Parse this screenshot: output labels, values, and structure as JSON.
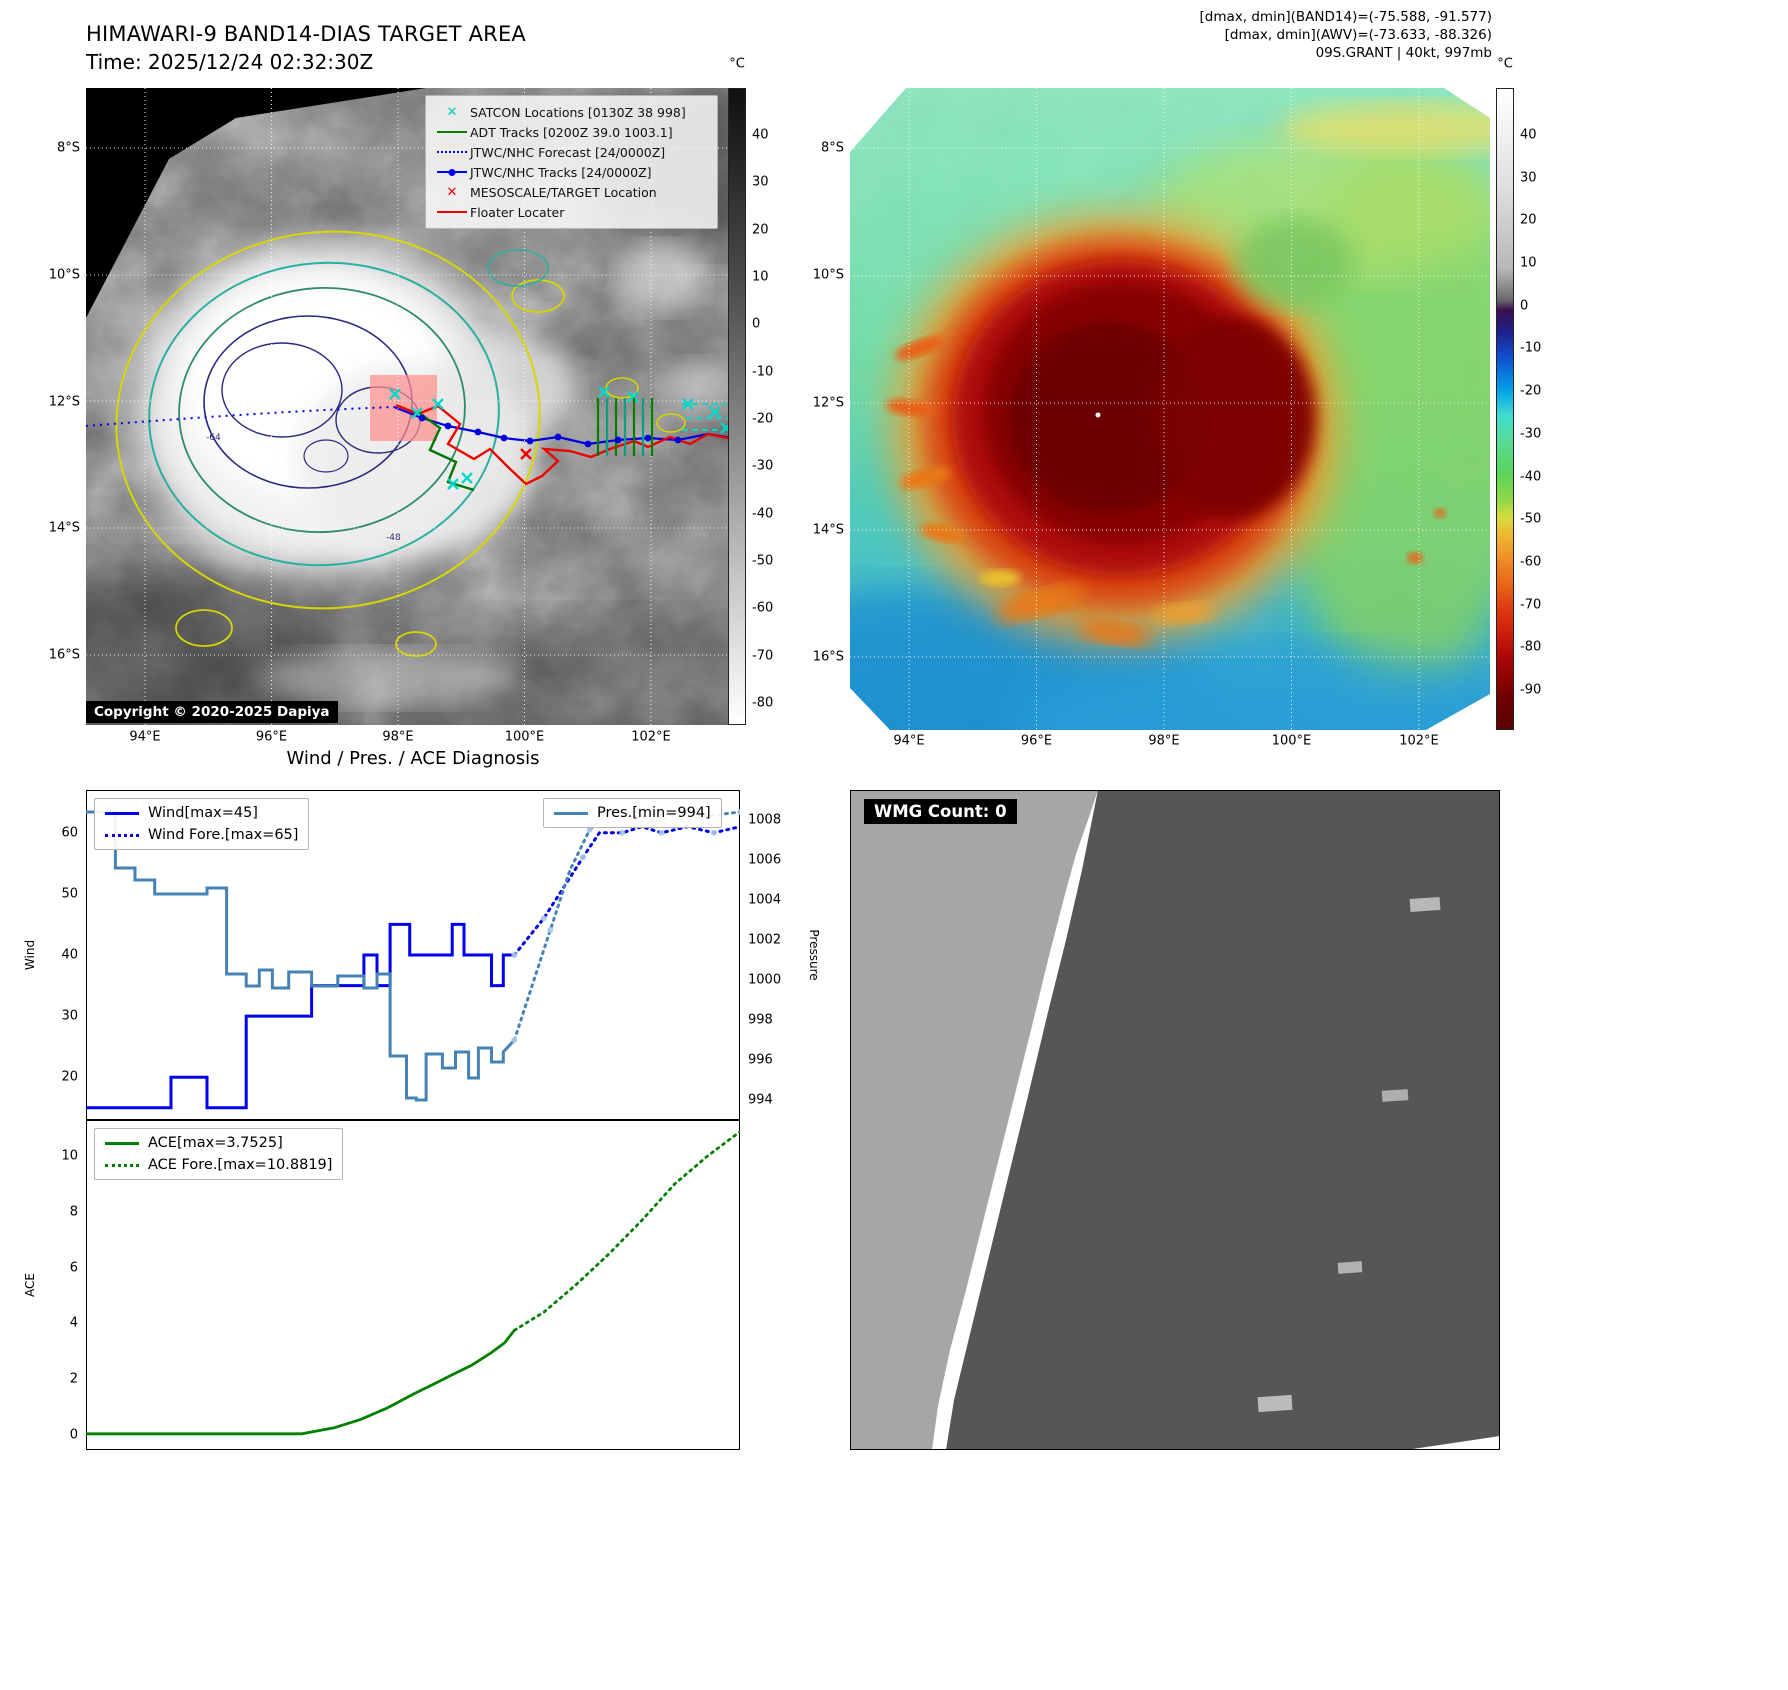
{
  "panel1": {
    "title": "HIMAWARI-9 BAND14-DIAS TARGET AREA",
    "time_label": "Time: 2025/12/24 02:32:30Z",
    "colorbar_unit": "°C",
    "colorbar_ticks": [
      "40",
      "30",
      "20",
      "10",
      "0",
      "-10",
      "-20",
      "-30",
      "-40",
      "-50",
      "-60",
      "-70",
      "-80"
    ],
    "lat_ticks": [
      "8°S",
      "10°S",
      "12°S",
      "14°S",
      "16°S"
    ],
    "lon_ticks": [
      "94°E",
      "96°E",
      "98°E",
      "100°E",
      "102°E"
    ],
    "legend": [
      {
        "label": "SATCON Locations [0130Z 38 998]",
        "marker": "x",
        "color": "#00cbbb"
      },
      {
        "label": "ADT Tracks [0200Z 39.0 1003.1]",
        "marker": "line",
        "color": "#008000"
      },
      {
        "label": "JTWC/NHC Forecast [24/0000Z]",
        "marker": "dotted",
        "color": "#0000ee"
      },
      {
        "label": "JTWC/NHC Tracks [24/0000Z]",
        "marker": "line-dot",
        "color": "#0000ee"
      },
      {
        "label": "MESOSCALE/TARGET Location",
        "marker": "x",
        "color": "#ee0000"
      },
      {
        "label": "Floater Locater",
        "marker": "line",
        "color": "#ee0000"
      }
    ],
    "contour_labels": [
      "-64",
      "-48"
    ],
    "copyright": "Copyright © 2020-2025 Dapiya"
  },
  "panel2": {
    "info_line1": "[dmax, dmin](BAND14)=(-75.588, -91.577)",
    "info_line2": "[dmax, dmin](AWV)=(-73.633, -88.326)",
    "storm_line": "09S.GRANT | 40kt, 997mb",
    "colorbar_unit": "°C",
    "colorbar_ticks": [
      "40",
      "30",
      "20",
      "10",
      "0",
      "-10",
      "-20",
      "-30",
      "-40",
      "-50",
      "-60",
      "-70",
      "-80",
      "-90"
    ],
    "lat_ticks": [
      "8°S",
      "10°S",
      "12°S",
      "14°S",
      "16°S"
    ],
    "lon_ticks": [
      "94°E",
      "96°E",
      "98°E",
      "100°E",
      "102°E"
    ]
  },
  "panel3": {
    "title": "Wind / Pres. / ACE Diagnosis"
  },
  "panel4": {
    "wmg_label": "WMG Count: 0"
  },
  "chart_data": [
    {
      "type": "line",
      "title": "Wind / Pres. / ACE Diagnosis",
      "xlabel": "",
      "y_left": {
        "label": "Wind",
        "ticks": [
          20,
          30,
          40,
          50,
          60
        ],
        "range": [
          13,
          67
        ]
      },
      "y_right": {
        "label": "Pressure",
        "ticks": [
          994,
          996,
          998,
          1000,
          1002,
          1004,
          1006,
          1008
        ],
        "range": [
          993.0,
          1009.5
        ]
      },
      "series": [
        {
          "name": "Wind[max=45]",
          "axis": "left",
          "dash": "solid",
          "color": "#0000ee",
          "width": 3,
          "points": [
            [
              0,
              15
            ],
            [
              0.13,
              15
            ],
            [
              0.13,
              20
            ],
            [
              0.185,
              20
            ],
            [
              0.185,
              15
            ],
            [
              0.245,
              15
            ],
            [
              0.245,
              30
            ],
            [
              0.345,
              30
            ],
            [
              0.345,
              35
            ],
            [
              0.425,
              35
            ],
            [
              0.425,
              40
            ],
            [
              0.445,
              40
            ],
            [
              0.445,
              35
            ],
            [
              0.465,
              35
            ],
            [
              0.465,
              45
            ],
            [
              0.495,
              45
            ],
            [
              0.495,
              40
            ],
            [
              0.56,
              40
            ],
            [
              0.56,
              45
            ],
            [
              0.578,
              45
            ],
            [
              0.578,
              40
            ],
            [
              0.62,
              40
            ],
            [
              0.62,
              35
            ],
            [
              0.638,
              35
            ],
            [
              0.638,
              40
            ],
            [
              0.655,
              40
            ]
          ]
        },
        {
          "name": "Wind Fore.[max=65]",
          "axis": "left",
          "dash": "dotted",
          "color": "#0000ee",
          "width": 3,
          "marker_color": "#a8c8e8",
          "points": [
            [
              0.655,
              40
            ],
            [
              0.67,
              42
            ],
            [
              0.7,
              46
            ],
            [
              0.73,
              51
            ],
            [
              0.76,
              56
            ],
            [
              0.785,
              60
            ],
            [
              0.82,
              60
            ],
            [
              0.85,
              61
            ],
            [
              0.88,
              60
            ],
            [
              0.92,
              61
            ],
            [
              0.96,
              60
            ],
            [
              1.0,
              61
            ]
          ]
        },
        {
          "name": "Pres.[min=994]",
          "axis": "right",
          "dash": "solid",
          "color": "#4682b4",
          "width": 3,
          "points": [
            [
              0,
              1008.4
            ],
            [
              0.045,
              1008.4
            ],
            [
              0.045,
              1005.6
            ],
            [
              0.075,
              1005.6
            ],
            [
              0.075,
              1005.0
            ],
            [
              0.105,
              1005.0
            ],
            [
              0.105,
              1004.3
            ],
            [
              0.185,
              1004.3
            ],
            [
              0.185,
              1004.6
            ],
            [
              0.215,
              1004.6
            ],
            [
              0.215,
              1000.3
            ],
            [
              0.245,
              1000.3
            ],
            [
              0.245,
              999.7
            ],
            [
              0.265,
              999.7
            ],
            [
              0.265,
              1000.5
            ],
            [
              0.285,
              1000.5
            ],
            [
              0.285,
              999.6
            ],
            [
              0.31,
              999.6
            ],
            [
              0.31,
              1000.4
            ],
            [
              0.345,
              1000.4
            ],
            [
              0.345,
              999.7
            ],
            [
              0.385,
              999.7
            ],
            [
              0.385,
              1000.2
            ],
            [
              0.425,
              1000.2
            ],
            [
              0.425,
              999.6
            ],
            [
              0.445,
              999.6
            ],
            [
              0.445,
              1000.3
            ],
            [
              0.465,
              1000.3
            ],
            [
              0.465,
              996.2
            ],
            [
              0.49,
              996.2
            ],
            [
              0.49,
              994.1
            ],
            [
              0.505,
              994.1
            ],
            [
              0.505,
              994.0
            ],
            [
              0.52,
              994.0
            ],
            [
              0.52,
              996.3
            ],
            [
              0.545,
              996.3
            ],
            [
              0.545,
              995.6
            ],
            [
              0.565,
              995.6
            ],
            [
              0.565,
              996.4
            ],
            [
              0.585,
              996.4
            ],
            [
              0.585,
              995.1
            ],
            [
              0.6,
              995.1
            ],
            [
              0.6,
              996.6
            ],
            [
              0.62,
              996.6
            ],
            [
              0.62,
              995.9
            ],
            [
              0.638,
              995.9
            ],
            [
              0.638,
              996.4
            ],
            [
              0.655,
              997.0
            ]
          ]
        },
        {
          "name": "Pres. Fore.",
          "show_in_legend": false,
          "axis": "right",
          "dash": "dotted",
          "color": "#4682b4",
          "width": 3,
          "marker_color": "#a8c8e8",
          "points": [
            [
              0.655,
              997.0
            ],
            [
              0.68,
              999.5
            ],
            [
              0.71,
              1002.5
            ],
            [
              0.74,
              1005.5
            ],
            [
              0.77,
              1007.5
            ],
            [
              0.8,
              1008.4
            ],
            [
              0.84,
              1008.4
            ],
            [
              0.87,
              1007.9
            ],
            [
              0.91,
              1008.4
            ],
            [
              0.95,
              1008.2
            ],
            [
              1.0,
              1008.4
            ]
          ]
        }
      ]
    },
    {
      "type": "line",
      "title": "ACE",
      "xlabel": "",
      "y_left": {
        "label": "ACE",
        "ticks": [
          0,
          2,
          4,
          6,
          8,
          10
        ],
        "range": [
          -0.55,
          11.3
        ]
      },
      "series": [
        {
          "name": "ACE[max=3.7525]",
          "axis": "left",
          "dash": "solid",
          "color": "#008000",
          "width": 2.8,
          "points": [
            [
              0,
              0.03
            ],
            [
              0.33,
              0.03
            ],
            [
              0.38,
              0.25
            ],
            [
              0.42,
              0.55
            ],
            [
              0.46,
              0.95
            ],
            [
              0.5,
              1.45
            ],
            [
              0.53,
              1.8
            ],
            [
              0.56,
              2.15
            ],
            [
              0.59,
              2.5
            ],
            [
              0.62,
              2.95
            ],
            [
              0.64,
              3.3
            ],
            [
              0.655,
              3.75
            ]
          ]
        },
        {
          "name": "ACE Fore.[max=10.8819]",
          "axis": "left",
          "dash": "dotted",
          "color": "#008000",
          "width": 2.8,
          "points": [
            [
              0.655,
              3.75
            ],
            [
              0.7,
              4.4
            ],
            [
              0.75,
              5.4
            ],
            [
              0.8,
              6.5
            ],
            [
              0.85,
              7.7
            ],
            [
              0.9,
              9.0
            ],
            [
              0.95,
              10.0
            ],
            [
              1.0,
              10.88
            ]
          ]
        }
      ]
    }
  ]
}
